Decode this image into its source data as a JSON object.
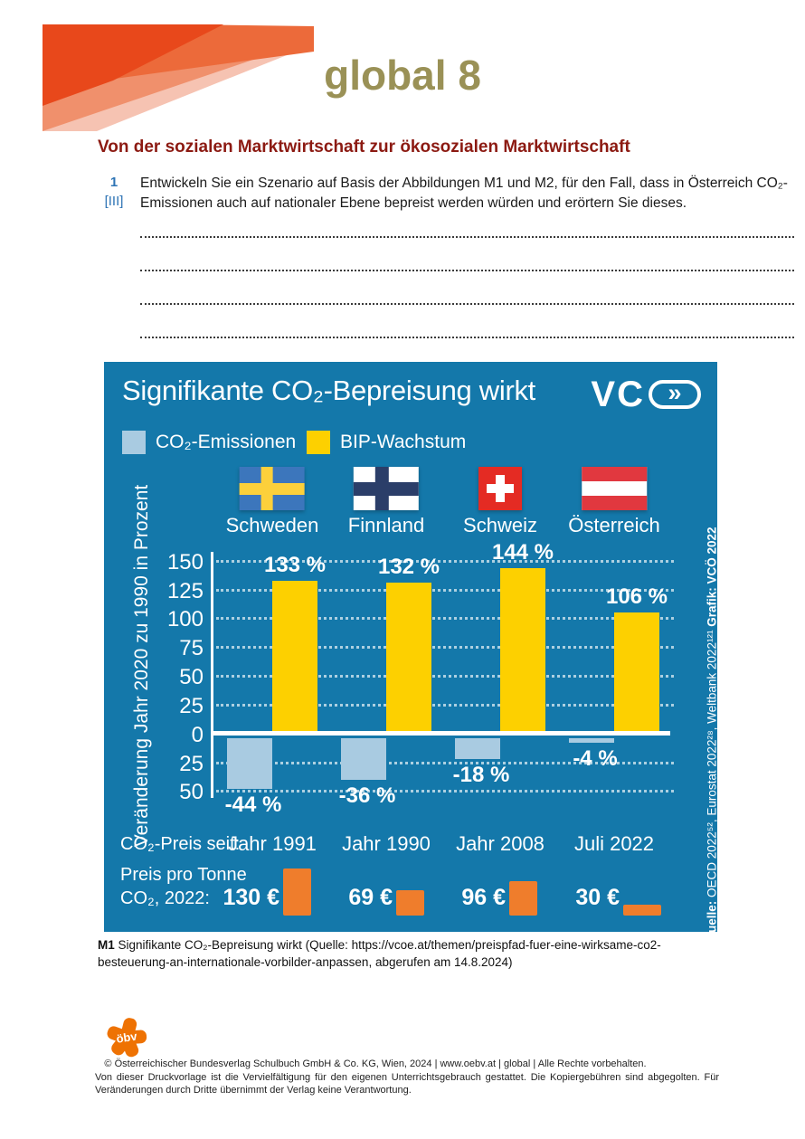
{
  "page": {
    "brand_title": "global 8",
    "heading": "Von der sozialen Marktwirtschaft zur ökosozialen Marktwirtschaft",
    "task": {
      "number": "1",
      "level": "[III]",
      "text": "Entwickeln Sie ein Szenario auf Basis der Abbildungen M1 und M2, für den Fall, dass in Österreich CO₂-Emissionen auch auf nationaler Ebene bepreist werden würden und erörtern Sie dieses."
    },
    "caption": {
      "label": "M1",
      "text": " Signifikante CO₂-Bepreisung wirkt (Quelle: https://vcoe.at/themen/preispfad-fuer-eine-wirksame-co2-besteuerung-an-internationale-vorbilder-anpassen, abgerufen am 14.8.2024)"
    },
    "footer": {
      "logo_text": "öbv",
      "line1": "© Österreichischer Bundesverlag Schulbuch GmbH & Co. KG, Wien, 2024 | www.oebv.at | global | Alle Rechte vorbehalten.",
      "line2": "Von dieser Druckvorlage ist die Vervielfältigung für den eigenen Unterrichtsgebrauch gestattet. Die Kopiergebühren sind abgegolten. Für Veränderungen durch Dritte übernimmt der Verlag keine Verantwortung."
    }
  },
  "chart_data": {
    "type": "bar",
    "title": "Signifikante CO₂-Bepreisung wirkt",
    "logo_vc": "VC",
    "logo_chevrons": "»",
    "ylabel": "Veränderung Jahr 2020 zu 1990 in Prozent",
    "ylim": [
      -50,
      150
    ],
    "ytick_step": 25,
    "yticks_shown": [
      "150",
      "125",
      "100",
      "75",
      "50",
      "25",
      "0",
      "25",
      "50"
    ],
    "grid": true,
    "legend_position": "top",
    "background": "#1478aa",
    "categories": [
      "Schweden",
      "Finnland",
      "Schweiz",
      "Österreich"
    ],
    "series": [
      {
        "name": "CO₂-Emissionen",
        "color": "#a9cbe1",
        "values": [
          -44,
          -36,
          -18,
          -4
        ],
        "labels": [
          "-44 %",
          "-36 %",
          "-18 %",
          "-4 %"
        ]
      },
      {
        "name": "BIP-Wachstum",
        "color": "#fdd000",
        "values": [
          133,
          132,
          144,
          106
        ],
        "labels": [
          "133 %",
          "132 %",
          "144 %",
          "106 %"
        ]
      }
    ],
    "price_since_label": "CO₂-Preis seit:",
    "price_since": [
      "Jahr 1991",
      "Jahr 1990",
      "Jahr 2008",
      "Juli 2022"
    ],
    "price_per_tonne_label_1": "Preis pro Tonne",
    "price_per_tonne_label_2": "CO₂, 2022:",
    "price_per_tonne": [
      "130 €",
      "69 €",
      "96 €",
      "30 €"
    ],
    "price_values": [
      130,
      69,
      96,
      30
    ],
    "price_color": "#ef7d2c",
    "source_label": "Quelle:",
    "source_text": " OECD 2022⁵², Eurostat 2022²⁸, Weltbank 2022¹²¹ ",
    "credit_text": "Grafik: VCÖ 2022"
  }
}
